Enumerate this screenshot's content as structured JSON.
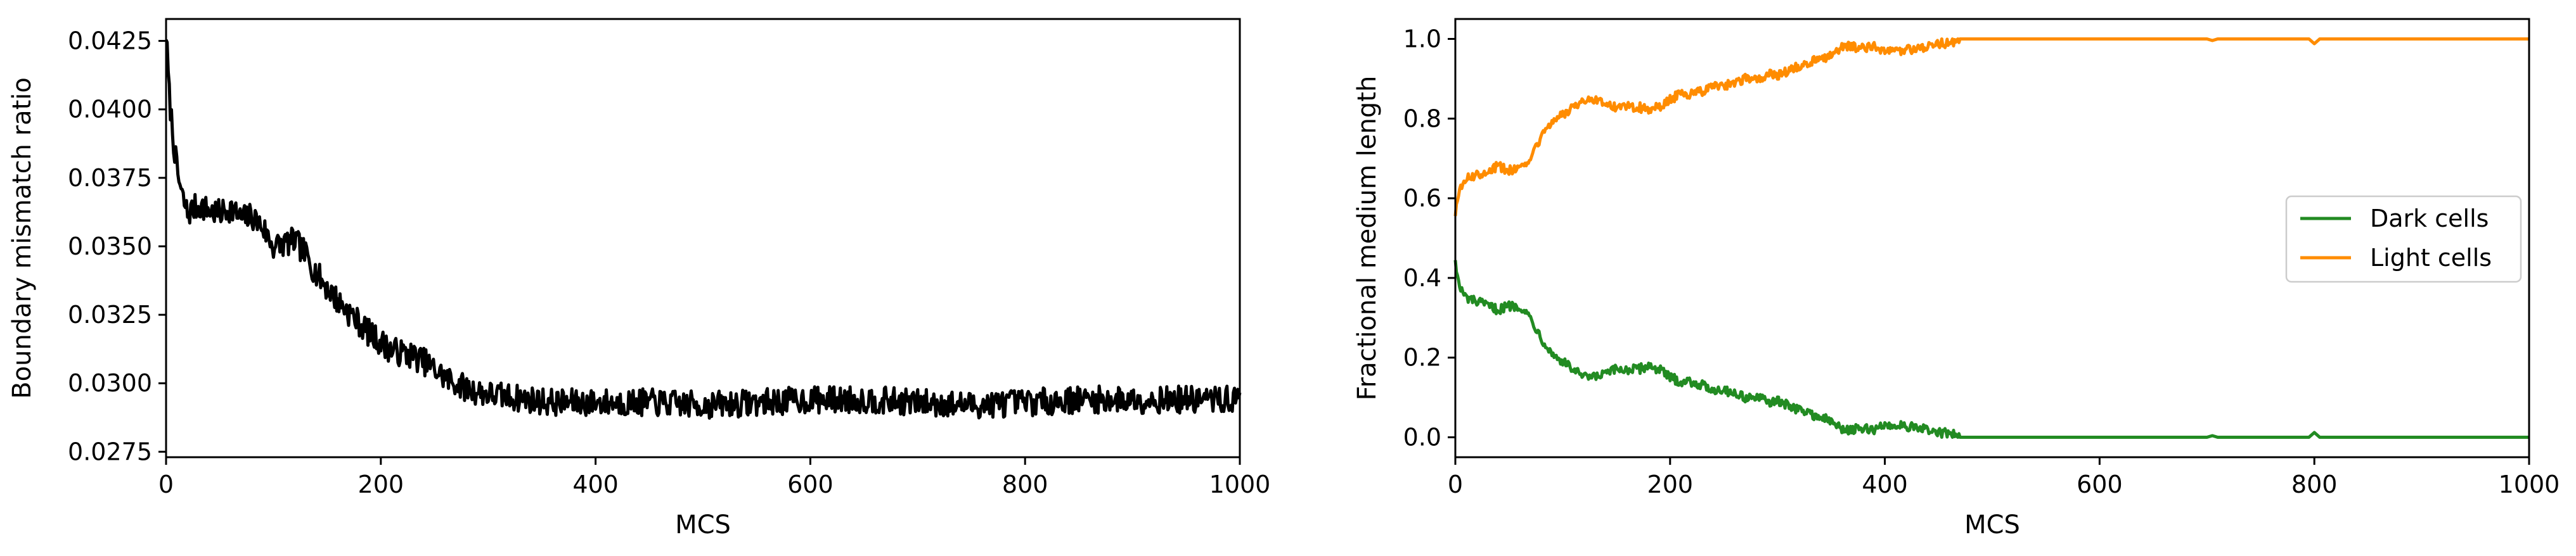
{
  "chart_data": [
    {
      "type": "line",
      "xlabel": "MCS",
      "ylabel": "Boundary mismatch ratio",
      "xlim": [
        0,
        1000
      ],
      "ylim": [
        0.0273,
        0.0433
      ],
      "xticks": [
        0,
        200,
        400,
        600,
        800,
        1000
      ],
      "yticks": [
        0.0275,
        0.03,
        0.0325,
        0.035,
        0.0375,
        0.04,
        0.0425
      ],
      "xtick_labels": [
        "0",
        "200",
        "400",
        "600",
        "800",
        "1000"
      ],
      "ytick_labels": [
        "0.0275",
        "0.0300",
        "0.0325",
        "0.0350",
        "0.0375",
        "0.0400",
        "0.0425"
      ],
      "grid": false,
      "series": [
        {
          "color": "#000000",
          "noise": 0.0005,
          "x": [
            0,
            3,
            6,
            10,
            15,
            20,
            30,
            40,
            50,
            60,
            70,
            80,
            90,
            100,
            110,
            120,
            130,
            140,
            150,
            160,
            170,
            180,
            190,
            200,
            210,
            220,
            230,
            240,
            250,
            260,
            270,
            280,
            290,
            300,
            320,
            340,
            360,
            380,
            400,
            450,
            500,
            550,
            600,
            650,
            700,
            750,
            800,
            850,
            900,
            950,
            1000
          ],
          "values": [
            0.0428,
            0.0405,
            0.0392,
            0.0378,
            0.0368,
            0.0362,
            0.0365,
            0.0363,
            0.0362,
            0.0364,
            0.036,
            0.0361,
            0.0357,
            0.035,
            0.0351,
            0.0352,
            0.0347,
            0.034,
            0.0335,
            0.033,
            0.0326,
            0.0322,
            0.0318,
            0.0315,
            0.0312,
            0.0311,
            0.031,
            0.0308,
            0.0305,
            0.0302,
            0.03,
            0.0298,
            0.0297,
            0.0296,
            0.0295,
            0.0294,
            0.0293,
            0.0293,
            0.0293,
            0.0293,
            0.0292,
            0.0293,
            0.0294,
            0.0294,
            0.0293,
            0.0292,
            0.0293,
            0.0294,
            0.0294,
            0.0294,
            0.0294
          ]
        }
      ]
    },
    {
      "type": "line",
      "xlabel": "MCS",
      "ylabel": "Fractional medium length",
      "xlim": [
        0,
        1000
      ],
      "ylim": [
        -0.05,
        1.05
      ],
      "xticks": [
        0,
        200,
        400,
        600,
        800,
        1000
      ],
      "yticks": [
        0.0,
        0.2,
        0.4,
        0.6,
        0.8,
        1.0
      ],
      "xtick_labels": [
        "0",
        "200",
        "400",
        "600",
        "800",
        "1000"
      ],
      "ytick_labels": [
        "0.0",
        "0.2",
        "0.4",
        "0.6",
        "0.8",
        "1.0"
      ],
      "grid": false,
      "legend": "center right",
      "series": [
        {
          "name": "Dark cells",
          "color": "#228b22",
          "noise": 0.012,
          "noise_until": 470,
          "x": [
            0,
            2,
            5,
            10,
            20,
            30,
            40,
            50,
            60,
            70,
            80,
            90,
            100,
            110,
            120,
            130,
            140,
            150,
            160,
            170,
            180,
            190,
            200,
            210,
            220,
            230,
            240,
            250,
            260,
            270,
            280,
            290,
            300,
            310,
            320,
            330,
            340,
            350,
            360,
            370,
            380,
            390,
            400,
            410,
            420,
            430,
            440,
            450,
            460,
            470,
            480,
            700,
            705,
            710,
            715,
            795,
            800,
            805,
            810,
            1000
          ],
          "values": [
            0.45,
            0.4,
            0.37,
            0.35,
            0.34,
            0.33,
            0.32,
            0.33,
            0.33,
            0.3,
            0.25,
            0.21,
            0.19,
            0.17,
            0.15,
            0.15,
            0.16,
            0.17,
            0.17,
            0.17,
            0.18,
            0.17,
            0.15,
            0.14,
            0.14,
            0.13,
            0.12,
            0.12,
            0.11,
            0.1,
            0.1,
            0.09,
            0.09,
            0.08,
            0.07,
            0.06,
            0.05,
            0.04,
            0.02,
            0.02,
            0.02,
            0.02,
            0.03,
            0.03,
            0.03,
            0.02,
            0.02,
            0.01,
            0.01,
            0.0,
            0.0,
            0.0,
            0.004,
            0.0,
            0.0,
            0.0,
            0.012,
            0.0,
            0.0,
            0.0
          ]
        },
        {
          "name": "Light cells",
          "color": "#ff8c00",
          "noise": 0.012,
          "noise_until": 470,
          "x": [
            0,
            2,
            5,
            10,
            20,
            30,
            40,
            50,
            60,
            70,
            80,
            90,
            100,
            110,
            120,
            130,
            140,
            150,
            160,
            170,
            180,
            190,
            200,
            210,
            220,
            230,
            240,
            250,
            260,
            270,
            280,
            290,
            300,
            310,
            320,
            330,
            340,
            350,
            360,
            370,
            380,
            390,
            400,
            410,
            420,
            430,
            440,
            450,
            460,
            470,
            480,
            700,
            705,
            710,
            715,
            795,
            800,
            805,
            810,
            1000
          ],
          "values": [
            0.55,
            0.6,
            0.63,
            0.65,
            0.66,
            0.67,
            0.68,
            0.67,
            0.67,
            0.7,
            0.75,
            0.79,
            0.81,
            0.83,
            0.85,
            0.85,
            0.84,
            0.83,
            0.83,
            0.83,
            0.82,
            0.83,
            0.85,
            0.86,
            0.86,
            0.87,
            0.88,
            0.88,
            0.89,
            0.9,
            0.9,
            0.91,
            0.91,
            0.92,
            0.93,
            0.94,
            0.95,
            0.96,
            0.98,
            0.98,
            0.98,
            0.98,
            0.97,
            0.97,
            0.97,
            0.98,
            0.98,
            0.99,
            0.99,
            1.0,
            1.0,
            1.0,
            0.996,
            1.0,
            1.0,
            1.0,
            0.988,
            1.0,
            1.0,
            1.0
          ]
        }
      ]
    }
  ]
}
